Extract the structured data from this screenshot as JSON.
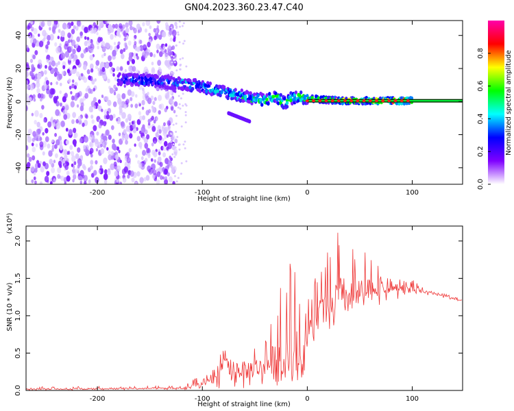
{
  "title": "GN04.2023.360.23.47.C40",
  "chart_data": [
    {
      "type": "heatmap",
      "title": "GN04.2023.360.23.47.C40",
      "xlabel": "Height of straight line (km)",
      "ylabel": "Frequency (Hz)",
      "xlim": [
        -268,
        148
      ],
      "ylim": [
        -50,
        49
      ],
      "xticks": [
        -200,
        -100,
        0,
        100
      ],
      "yticks": [
        -40,
        -20,
        0,
        20,
        40
      ],
      "grid": false,
      "colorbar": {
        "label": "Normalized spectral amplitude",
        "range": [
          0.0,
          1.0
        ],
        "ticks": [
          "0.0",
          "0.2",
          "0.4",
          "0.6",
          "0.8"
        ],
        "colormap": [
          "#ffffff",
          "#7f00ff",
          "#0000ff",
          "#00ffff",
          "#00ff00",
          "#ffff00",
          "#ff0000",
          "#ff00aa"
        ]
      },
      "noise_region_x": [
        -268,
        -125
      ],
      "ridge": {
        "x": [
          -180,
          -160,
          -140,
          -120,
          -100,
          -80,
          -60,
          -50,
          -40,
          -30,
          -22,
          -15,
          -8,
          0,
          20,
          40,
          60,
          80,
          100
        ],
        "y": [
          14,
          13,
          12,
          11,
          9,
          6,
          3,
          2,
          1,
          3,
          -1,
          2,
          3,
          2,
          1,
          0.5,
          0.5,
          0.5,
          0.5
        ]
      },
      "steady_line": {
        "x": [
          0,
          148
        ],
        "y": 0.5,
        "width": 3
      },
      "secondary_branch": {
        "x": [
          -75,
          -55
        ],
        "y": [
          -7,
          -12
        ]
      }
    },
    {
      "type": "line",
      "xlabel": "Height of straight line (km)",
      "ylabel": "SNR (10 * v/v)",
      "ylabel_exponent": "(x10⁴)",
      "xlim": [
        -268,
        148
      ],
      "ylim": [
        0,
        2.2
      ],
      "xticks": [
        -200,
        -100,
        0,
        100
      ],
      "yticks": [
        "0.0",
        "0.5",
        "1.0",
        "1.5",
        "2.0"
      ],
      "color": "#ee3333",
      "grid": false,
      "envelope": {
        "x": [
          -268,
          -120,
          -100,
          -90,
          -80,
          -70,
          -60,
          -50,
          -40,
          -30,
          -20,
          -15,
          -10,
          -5,
          0,
          10,
          20,
          30,
          40,
          50,
          60,
          70,
          80,
          90,
          100,
          110,
          120,
          130,
          140,
          148
        ],
        "mean": [
          0.02,
          0.03,
          0.08,
          0.2,
          0.3,
          0.3,
          0.27,
          0.3,
          0.33,
          0.38,
          0.45,
          0.55,
          0.6,
          0.35,
          0.7,
          1.0,
          1.1,
          1.25,
          1.25,
          1.3,
          1.35,
          1.4,
          1.4,
          1.35,
          1.35,
          1.32,
          1.3,
          1.28,
          1.23,
          1.2
        ],
        "peak": [
          0.05,
          0.06,
          0.22,
          0.55,
          0.62,
          0.6,
          0.55,
          0.6,
          0.8,
          1.2,
          1.87,
          1.8,
          1.5,
          1.0,
          1.3,
          1.6,
          1.9,
          2.2,
          1.95,
          1.9,
          1.8,
          1.7,
          1.62,
          1.5,
          1.5,
          1.38,
          1.33,
          1.3,
          1.25,
          1.22
        ],
        "trough": [
          0.0,
          0.01,
          0.0,
          0.0,
          0.02,
          0.02,
          0.02,
          0.02,
          0.02,
          0.02,
          0.05,
          0.1,
          0.15,
          0.05,
          0.45,
          0.7,
          0.8,
          0.85,
          0.95,
          1.05,
          1.1,
          1.15,
          1.2,
          1.22,
          1.25,
          1.28,
          1.26,
          1.24,
          1.2,
          1.18
        ]
      }
    }
  ]
}
